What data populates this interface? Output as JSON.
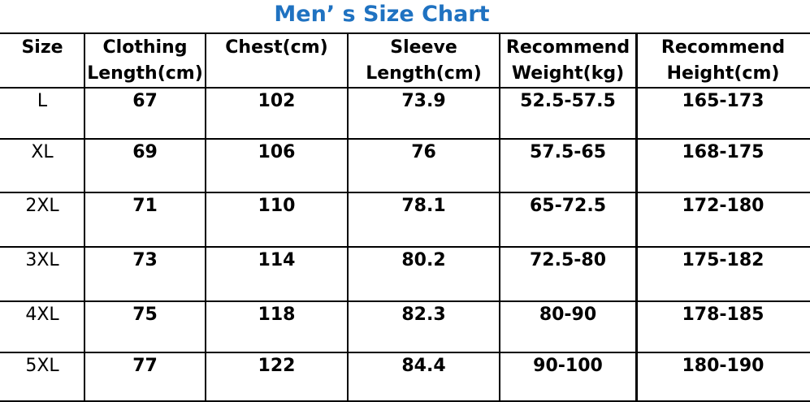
{
  "title": "Men’ s Size Chart",
  "table": {
    "header": [
      [
        "Size"
      ],
      [
        "Clothing",
        "Length(cm)"
      ],
      [
        "Chest(cm)"
      ],
      [
        "Sleeve",
        "Length(cm)"
      ],
      [
        "Recommend",
        "Weight(kg)"
      ],
      [
        "Recommend",
        "Height(cm)"
      ]
    ],
    "rows": [
      [
        "L",
        67,
        102,
        73.9,
        "52.5-57.5",
        "165-173"
      ],
      [
        "XL",
        69,
        106,
        76,
        "57.5-65",
        "168-175"
      ],
      [
        "2XL",
        71,
        110,
        78.1,
        "65-72.5",
        "172-180"
      ],
      [
        "3XL",
        73,
        114,
        80.2,
        "72.5-80",
        "175-182"
      ],
      [
        "4XL",
        75,
        118,
        82.3,
        "80-90",
        "178-185"
      ],
      [
        "5XL",
        77,
        122,
        84.4,
        "90-100",
        "180-190"
      ]
    ]
  }
}
